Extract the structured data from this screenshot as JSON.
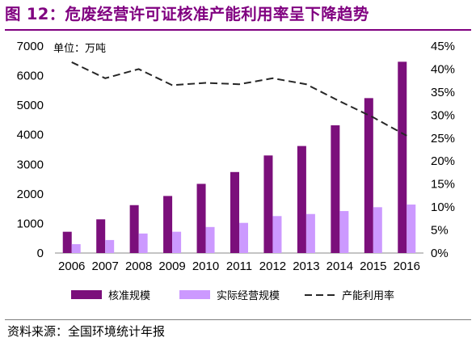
{
  "figure": {
    "title": "图 12：危废经营许可证核准产能利用率呈下降趋势",
    "source": "资料来源：全国环境统计年报",
    "title_color": "#800080"
  },
  "chart_data": {
    "type": "bar",
    "unit_label": "单位：万吨",
    "categories": [
      "2006",
      "2007",
      "2008",
      "2009",
      "2010",
      "2011",
      "2012",
      "2013",
      "2014",
      "2015",
      "2016"
    ],
    "series": [
      {
        "name": "核准规模",
        "type": "bar",
        "axis": "left",
        "color": "#7b0f7b",
        "values": [
          720,
          1140,
          1620,
          1930,
          2340,
          2740,
          3300,
          3620,
          4320,
          5240,
          6470
        ]
      },
      {
        "name": "实际经营规模",
        "type": "bar",
        "axis": "left",
        "color": "#cc99ff",
        "values": [
          300,
          440,
          660,
          720,
          880,
          1020,
          1250,
          1320,
          1420,
          1550,
          1640
        ]
      },
      {
        "name": "产能利用率",
        "type": "line",
        "axis": "right",
        "color": "#262626",
        "style": "dashed",
        "values": [
          0.415,
          0.38,
          0.4,
          0.365,
          0.37,
          0.367,
          0.38,
          0.367,
          0.33,
          0.295,
          0.255
        ]
      }
    ],
    "y_left": {
      "min": 0,
      "max": 7000,
      "ticks": [
        "0",
        "1000",
        "2000",
        "3000",
        "4000",
        "5000",
        "6000",
        "7000"
      ]
    },
    "y_right": {
      "min": 0,
      "max": 0.45,
      "ticks": [
        "0%",
        "5%",
        "10%",
        "15%",
        "20%",
        "25%",
        "30%",
        "35%",
        "40%",
        "45%"
      ]
    },
    "grid": false,
    "legend_position": "bottom"
  }
}
